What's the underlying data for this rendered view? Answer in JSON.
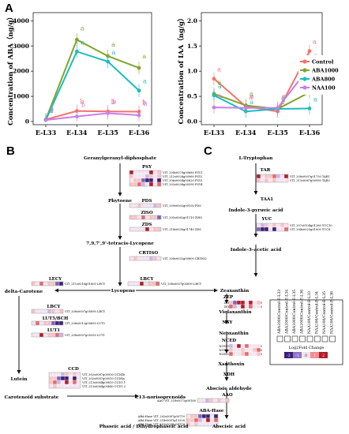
{
  "panels": {
    "a": "A",
    "b": "B",
    "c": "C"
  },
  "colors": {
    "control": "#f4726a",
    "aba1000": "#7fa62b",
    "aba800": "#1bbcc0",
    "naa100": "#c97ee8"
  },
  "chart_data": [
    {
      "type": "line",
      "ylabel": "Concentration of ABA（ng/g）",
      "categories": [
        "E-L33",
        "E-L34",
        "E-L35",
        "E-L36"
      ],
      "yticks": [
        "0",
        "1000",
        "2000",
        "3000",
        "4000"
      ],
      "ylim": [
        0,
        4200
      ],
      "series": [
        {
          "name": "Control",
          "values": [
            80,
            420,
            400,
            390
          ],
          "letters": [
            "a",
            "b",
            "b",
            "b"
          ]
        },
        {
          "name": "ABA1000",
          "values": [
            80,
            3250,
            2600,
            2130
          ],
          "letters": [
            "a",
            "a",
            "a",
            "a"
          ]
        },
        {
          "name": "ABA800",
          "values": [
            60,
            2780,
            2380,
            1230
          ],
          "letters": [
            "a",
            "a",
            "a",
            "a"
          ]
        },
        {
          "name": "NAA100",
          "values": [
            60,
            200,
            330,
            250
          ],
          "letters": [
            "a",
            "b",
            "b",
            "b"
          ]
        }
      ]
    },
    {
      "type": "line",
      "ylabel": "Concentration of IAA（ng/g）",
      "categories": [
        "E-L33",
        "E-L34",
        "E-L35",
        "E-L36"
      ],
      "yticks": [
        "0.0",
        "0.5",
        "1.0",
        "1.5",
        "2.0"
      ],
      "ylim": [
        0,
        2.1
      ],
      "legend": [
        "Control",
        "ABA1000",
        "ABA800",
        "NAA100"
      ],
      "legend_position": "right",
      "series": [
        {
          "name": "Control",
          "values": [
            0.85,
            0.3,
            0.2,
            1.4
          ],
          "letters": [
            "a",
            "a",
            "a",
            "a"
          ]
        },
        {
          "name": "ABA1000",
          "values": [
            0.55,
            0.32,
            0.25,
            0.58
          ],
          "letters": [
            "a",
            "a",
            "a",
            "a"
          ]
        },
        {
          "name": "ABA800",
          "values": [
            0.52,
            0.2,
            0.25,
            0.26
          ],
          "letters": [
            "a",
            "a",
            "a",
            "a"
          ]
        },
        {
          "name": "NAA100",
          "values": [
            0.28,
            0.27,
            0.27,
            1.08
          ],
          "letters": [
            "a",
            "a",
            "a",
            "a"
          ]
        }
      ]
    }
  ],
  "pathway_b": {
    "geranyl": "Geranylgeranyl-diphosphate",
    "psy": "PSY",
    "psy_genes": [
      "VIT_204s0079g00680 PSY1",
      "VIT_212s0028g00960 PSY2",
      "VIT_206s0004g00820 PSY3",
      "VIT_203s0038g00590 PSY4"
    ],
    "phytoene": "Phytoene",
    "pds": "PDS",
    "pds_gene": "VIT_209s0002g00100 PDS",
    "ziso": "ZISO",
    "ziso_gene": "VIT_205s0062g01110 ZISO",
    "zds": "ZDS",
    "zds_gene": "VIT_214s0030g01740 ZDS",
    "tetracis": "7,9,7',9'-tetracis-Lycopene",
    "crtiso": "CRTISO",
    "crtiso_gene": "VIT_208s0032g00800 CRTISO",
    "lycopene": "Lycopene",
    "lecy": "LECY",
    "lecy_gene": "VIT_211s0016g01600 LECY",
    "lbcy_top": "LBCY",
    "lbcy_top_gene": "VIT_208s0007g05890 LBCY",
    "delta": "delta-Carotene",
    "lbcy": "LBCY",
    "lbcy_gene": "VIT_208s0007g05890 LBCY",
    "lut5": "LUT5/BCH",
    "lut5_gene": "VIT_206s0012g00650 LUT5",
    "lut1": "LUT1",
    "lut1_gene": "VIT_208s0007g05350 LUT1",
    "lutein": "Lutein",
    "ccd": "CCD",
    "ccd_genes": [
      "VIT_202s0087g00930 CCD4b",
      "VIT_202s0087g00910 CCD4a",
      "VIT_213s0064g00810 CCD1.1",
      "VIT_213s0064g00840 CCD1.2"
    ],
    "carotenoid": "Carotenoid substrate",
    "c13": "C13-norisoprenoids",
    "zeaxanthin": "Zeaxanthin",
    "zep": "ZEP",
    "zep_genes": [
      "ZEP VIT_213s0156g00250",
      "ZEP VIT_208s0032g00020"
    ],
    "violaxanthin": "Violaxanthin",
    "nsy": "NSY",
    "neoxanthin": "Neoxanthin",
    "nced": "NCED",
    "nced_genes": [
      "NCED1 VIT_205s0051g00670",
      "NCED2 VIT_210s0003g01770",
      "NCED3 VIT_219s0093g00550"
    ],
    "xanthoxin": "Xanthoxin",
    "xdh": "XDH",
    "abscisic_aldehyde": "Abscisic aldehyde",
    "aao": "AAO",
    "aao_gene": "AAO VIT_218s0072g00160",
    "abscisic_acid": "Abscisic acid",
    "aba_hase": "ABA-Hase",
    "abah_genes": [
      "ABA-Hase VIT_202s0087g00710",
      "ABA-Hase VIT_218s0001g13330",
      "ABA-Hase VIT_203s0038g04110"
    ],
    "phaseic": "Phaseic acid / Dihydrophaseic acid"
  },
  "pathway_c": {
    "trp": "L-Tryptophan",
    "tar": "TAR",
    "tar_genes": [
      "VIT_208s0007g01730 TAR1",
      "VIT_213s0067g00990 TAR3"
    ],
    "taa1": "TAA1",
    "ipa": "Indole-3-pyruvic acid",
    "yuc": "YUC",
    "yuc_genes": [
      "VIT_207s0104g01260 YUC10",
      "VIT_204s0023g01000 YUC6"
    ],
    "iaa": "Indole-3-acetic acid"
  },
  "heatmap_legend": {
    "columns": [
      "ABA1000/Control-E-L33",
      "ABA1000/Control-E-L34",
      "ABA1000/Control-E-L35",
      "ABA1000/Control-E-L36",
      "NAA100/Control-E-L33",
      "NAA100/Control-E-L34",
      "NAA100/Control-E-L35",
      "NAA100/Control-E-L36"
    ],
    "title": "Log2Fold Change",
    "scale": [
      "-2",
      "-1",
      "0",
      "1",
      "2"
    ]
  }
}
